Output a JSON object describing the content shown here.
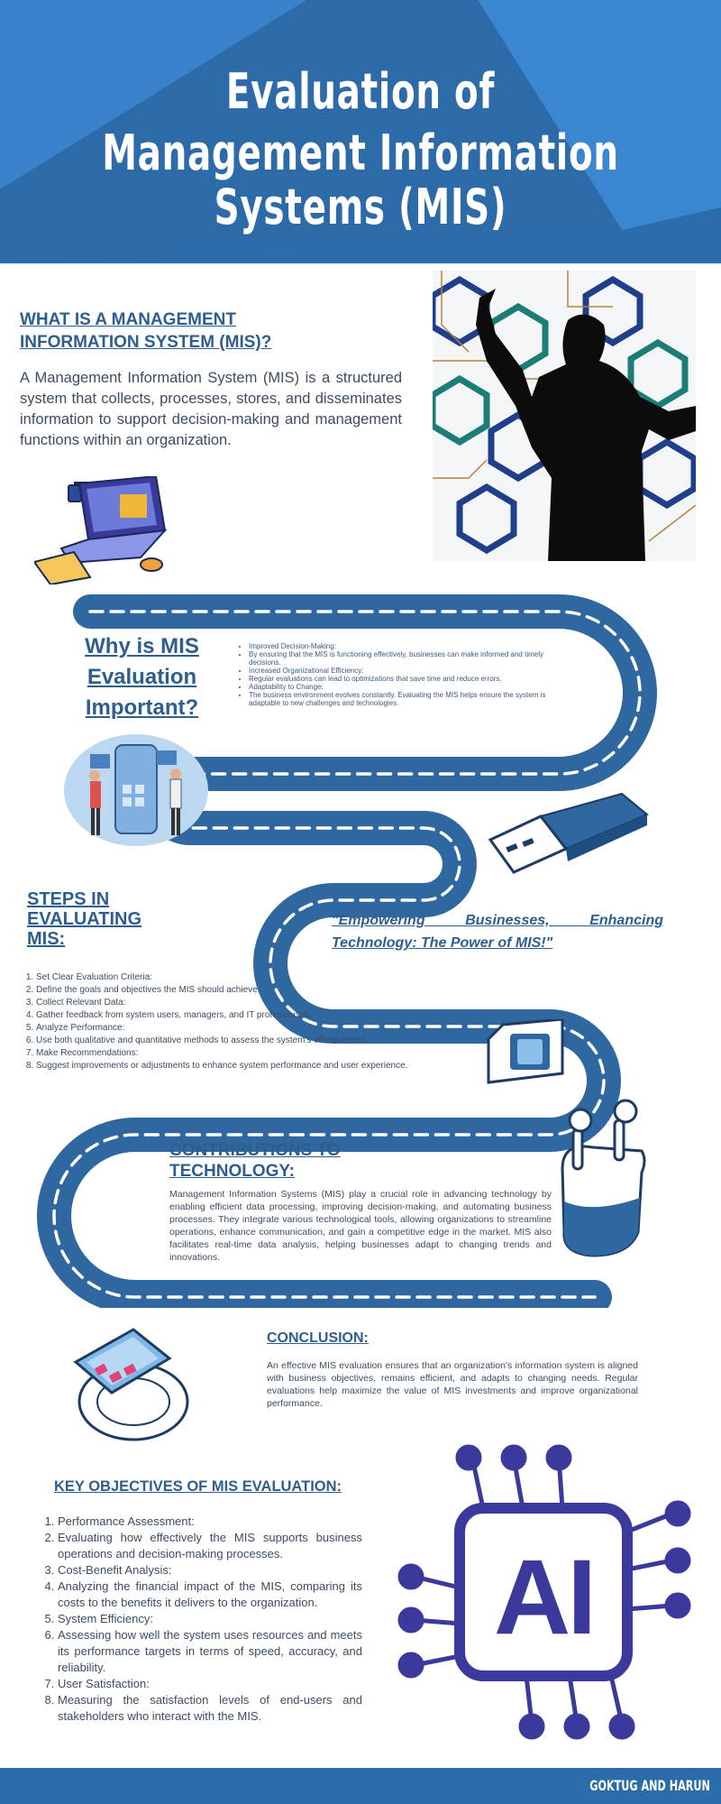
{
  "header": {
    "title_line1": "Evaluation of",
    "title_line2": "Management Information Systems (MIS)"
  },
  "what_is": {
    "heading_line1": "WHAT IS A MANAGEMENT",
    "heading_line2": "INFORMATION SYSTEM (MIS)?",
    "body": "A Management Information System (MIS) is a structured system that collects, processes, stores, and disseminates information to support decision-making and management functions within an organization."
  },
  "why": {
    "heading_line1": "Why is MIS",
    "heading_line2": "Evaluation",
    "heading_line3": "Important?",
    "bullets": [
      "Improved Decision-Making:",
      "By ensuring that the MIS is functioning effectively, businesses can make informed and timely decisions.",
      "Increased Organizational Efficiency:",
      "Regular evaluations can lead to optimizations that save time and reduce errors.",
      "Adaptability to Change:",
      "The business environment evolves constantly. Evaluating the MIS helps ensure the system is adaptable to new challenges and technologies."
    ]
  },
  "steps": {
    "heading_line1": "STEPS IN",
    "heading_line2": "EVALUATING",
    "heading_line3": "MIS:",
    "items": [
      "Set Clear Evaluation Criteria:",
      "Define the goals and objectives the MIS should achieve.",
      "Collect Relevant Data:",
      "Gather feedback from system users, managers, and IT professionals.",
      "Analyze Performance:",
      "Use both qualitative and quantitative methods to assess the system's effectiveness.",
      "Make Recommendations:",
      "Suggest improvements or adjustments to enhance system performance and user experience."
    ]
  },
  "quote": {
    "line1": "\"Empowering Businesses, Enhancing",
    "line2": "Technology: The Power of MIS!\""
  },
  "contributions": {
    "heading_line1": "CONTRIBUTIONS TO",
    "heading_line2": "TECHNOLOGY:",
    "body": "Management Information Systems (MIS) play a crucial role in advancing technology by enabling efficient data processing, improving decision-making, and automating business processes. They integrate various technological tools, allowing organizations to streamline operations, enhance communication, and gain a competitive edge in the market. MIS also facilitates real-time data analysis, helping businesses adapt to changing trends and innovations."
  },
  "conclusion": {
    "heading": "CONCLUSION:",
    "body": "An effective MIS evaluation ensures that an organization's information system is aligned with business objectives, remains efficient, and adapts to changing needs. Regular evaluations help maximize the value of MIS investments and improve organizational performance."
  },
  "objectives": {
    "heading": "KEY OBJECTIVES OF MIS EVALUATION:",
    "items": [
      "Performance Assessment:",
      "Evaluating how effectively the MIS supports business operations and decision-making processes.",
      "Cost-Benefit Analysis:",
      "Analyzing the financial impact of the MIS, comparing its costs to the benefits it delivers to the organization.",
      "System Efficiency:",
      "Assessing how well the system uses resources and meets its performance targets in terms of speed, accuracy, and reliability.",
      "User Satisfaction:",
      "Measuring the satisfaction levels of end-users and stakeholders who interact with the MIS."
    ]
  },
  "ai_chip": {
    "label": "AI"
  },
  "footer": {
    "credit": "GOKTUG AND HARUN"
  },
  "colors": {
    "primary": "#2b6cab",
    "road": "#2f67a0",
    "heading": "#2e5e8e",
    "chip": "#3b3a9c"
  }
}
